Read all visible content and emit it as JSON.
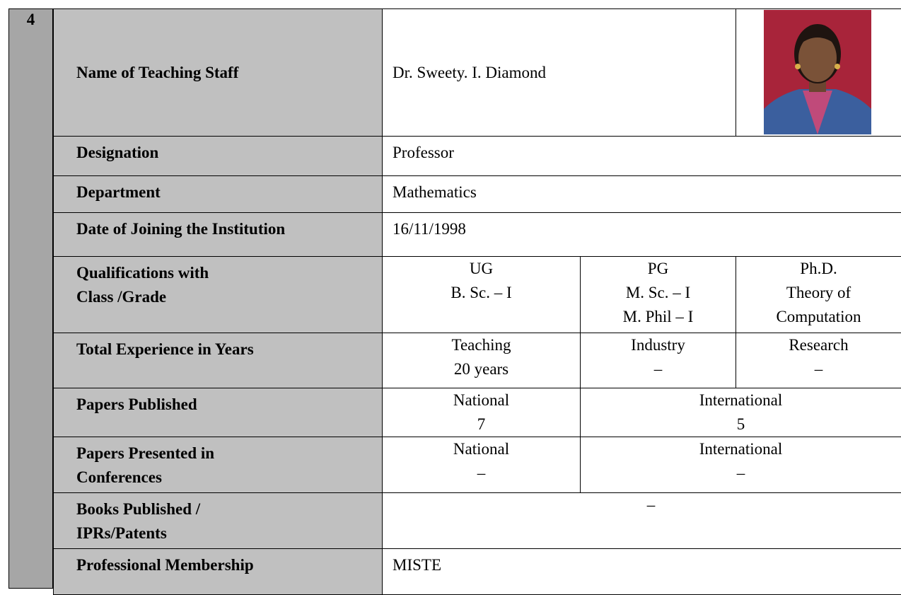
{
  "number": "4",
  "rows": [
    {
      "label": [
        "Name of  Teaching  Staff"
      ],
      "value": "Dr. Sweety. I. Diamond"
    },
    {
      "label": [
        "Designation"
      ],
      "value": "Professor"
    },
    {
      "label": [
        "Department"
      ],
      "value": "Mathematics"
    },
    {
      "label": [
        "Date of Joining the Institution"
      ],
      "value": "16/11/1998"
    },
    {
      "label": [
        "Qualifications with",
        "Class /Grade"
      ],
      "cells": [
        [
          "UG",
          "B. Sc. – I"
        ],
        [
          "PG",
          "M. Sc. – I",
          "M. Phil – I"
        ],
        [
          "Ph.D.",
          "Theory of",
          "Computation"
        ]
      ]
    },
    {
      "label": [
        "Total Experience in Years"
      ],
      "cells": [
        [
          "Teaching",
          "20 years"
        ],
        [
          "Industry",
          "–"
        ],
        [
          "Research",
          "–"
        ]
      ]
    },
    {
      "label": [
        "Papers Published"
      ],
      "cells": [
        [
          "National",
          7
        ],
        [
          "International",
          5
        ]
      ]
    },
    {
      "label": [
        "Papers Presented in",
        "Conferences"
      ],
      "cells": [
        [
          "National",
          "–"
        ],
        [
          "International",
          "–"
        ]
      ]
    },
    {
      "label": [
        "Books Published /",
        "IPRs/Patents"
      ],
      "cells": [
        [
          "–"
        ]
      ]
    },
    {
      "label": [
        "Professional Membership"
      ],
      "value": "MISTE"
    }
  ]
}
